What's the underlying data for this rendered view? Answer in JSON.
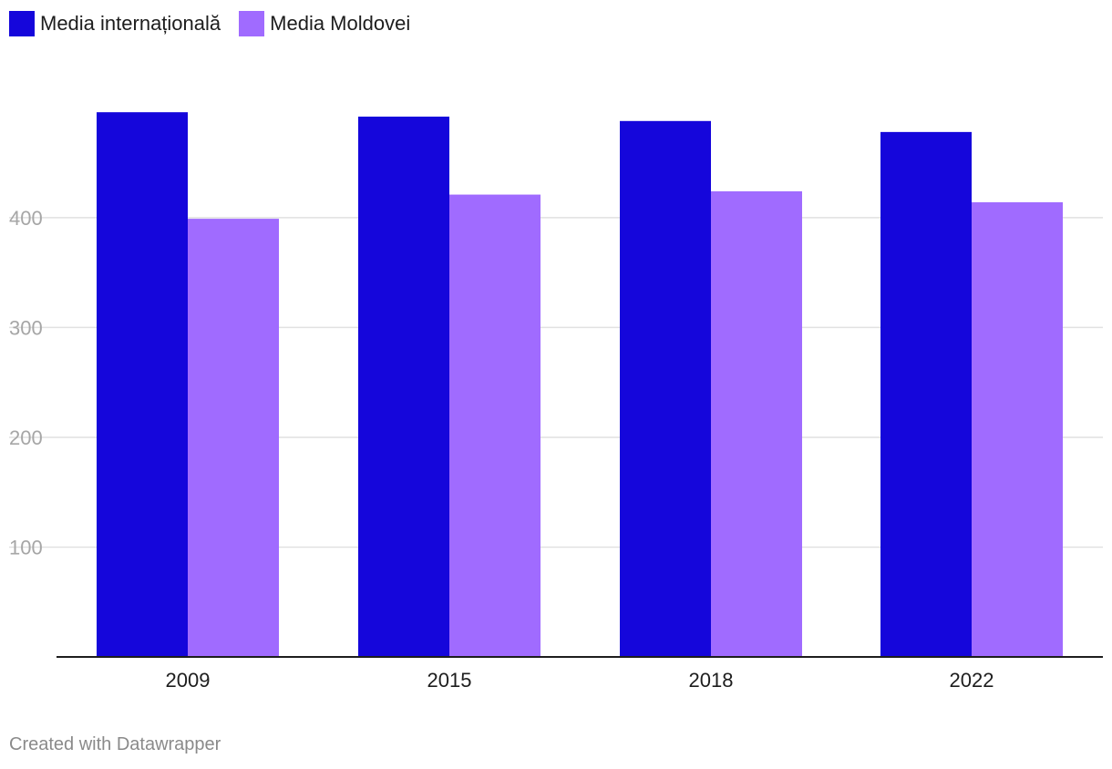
{
  "legend": {
    "items": [
      {
        "label": "Media internațională",
        "color": "#1506db"
      },
      {
        "label": "Media Moldovei",
        "color": "#a06bff"
      }
    ]
  },
  "footer": {
    "credit": "Created with Datawrapper"
  },
  "chart_data": {
    "type": "bar",
    "categories": [
      "2009",
      "2015",
      "2018",
      "2022"
    ],
    "series": [
      {
        "name": "Media internațională",
        "values": [
          496,
          492,
          488,
          478
        ],
        "color": "#1506db"
      },
      {
        "name": "Media Moldovei",
        "values": [
          399,
          421,
          424,
          414
        ],
        "color": "#a06bff"
      }
    ],
    "yticks": [
      "100",
      "200",
      "300",
      "400"
    ],
    "ylim": [
      0,
      500
    ],
    "grid": true,
    "legend_position": "top-left"
  }
}
